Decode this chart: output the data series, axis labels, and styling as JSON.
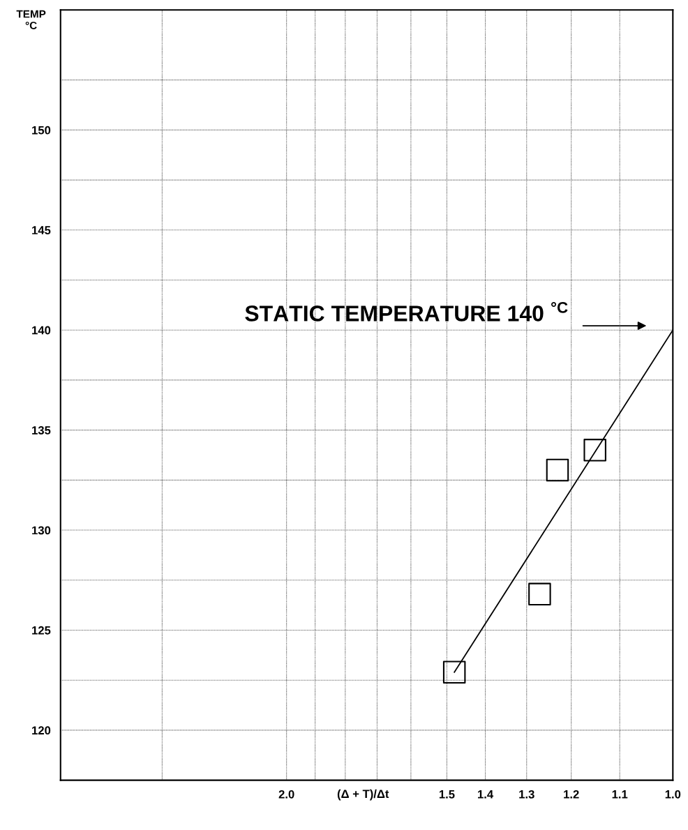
{
  "chart_data": {
    "type": "scatter",
    "xlabel": "(Δ + T)/Δt",
    "ylabel": "TEMP\n°C",
    "log": "x",
    "grid": true,
    "marker": "square",
    "xlim": [
      3.0,
      1.0
    ],
    "xticks": [
      {
        "value": 2.5,
        "label": null
      },
      {
        "value": 2.0,
        "label": "2.0"
      },
      {
        "value": 1.9,
        "label": null
      },
      {
        "value": 1.8,
        "label": null
      },
      {
        "value": 1.7,
        "label": null
      },
      {
        "value": 1.6,
        "label": null
      },
      1.5,
      1.4,
      1.3,
      1.2,
      1.1,
      {
        "value": 1.0,
        "label": "1.0"
      }
    ],
    "ylim": [
      117.5,
      156
    ],
    "yticks": [
      {
        "value": 117.5,
        "label": null
      },
      120,
      {
        "value": 122.5,
        "label": null
      },
      125,
      {
        "value": 127.5,
        "label": null
      },
      130,
      {
        "value": 132.5,
        "label": null
      },
      135,
      {
        "value": 137.5,
        "label": null
      },
      140,
      {
        "value": 142.5,
        "label": null
      },
      145,
      {
        "value": 147.5,
        "label": null
      },
      150,
      {
        "value": 152.5,
        "label": null
      }
    ],
    "series": [
      {
        "color": "#000000",
        "x": [
          1.48,
          1.27,
          1.23,
          1.15
        ],
        "values": [
          122.9,
          126.8,
          133.0,
          134.0
        ]
      },
      {
        "type": "line",
        "color": "#000000",
        "marker": "none",
        "x": [
          1.48,
          1.0
        ],
        "values": [
          122.9,
          140
        ]
      }
    ],
    "annotations": [
      "STATIC TEMPERATURE 140 $^{°C}$"
    ]
  }
}
